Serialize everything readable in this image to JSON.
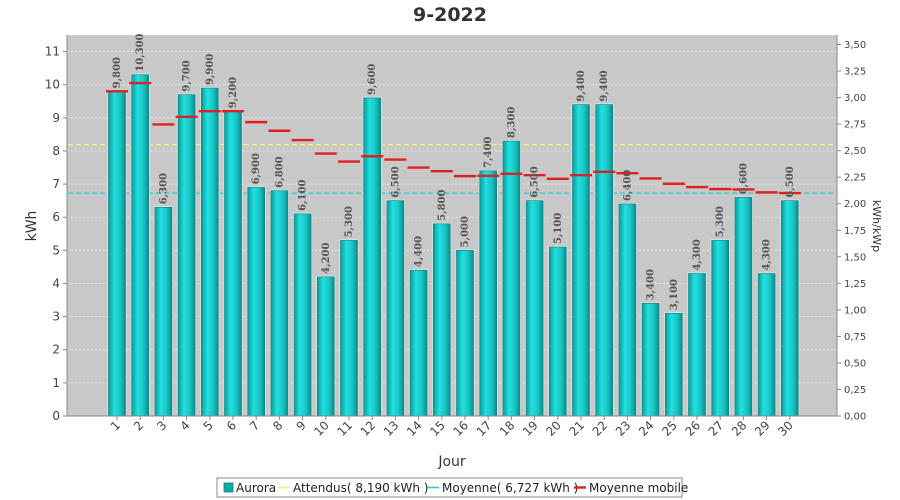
{
  "chart_data": {
    "type": "bar",
    "title": "9-2022",
    "xlabel": "Jour",
    "ylabel": "kWh",
    "ylabel_right": "kWh/kWp",
    "ylim": [
      0,
      11.5
    ],
    "ylim_right": [
      0,
      3.59
    ],
    "y_ticks": [
      0,
      1,
      2,
      3,
      4,
      5,
      6,
      7,
      8,
      9,
      10,
      11
    ],
    "y_right_ticks": [
      "0,00",
      "0,25",
      "0,50",
      "0,75",
      "1,00",
      "1,25",
      "1,50",
      "1,75",
      "2,00",
      "2,25",
      "2,50",
      "2,75",
      "3,00",
      "3,25",
      "3,50"
    ],
    "categories": [
      "1",
      "2",
      "3",
      "4",
      "5",
      "6",
      "7",
      "8",
      "9",
      "10",
      "11",
      "12",
      "13",
      "14",
      "15",
      "16",
      "17",
      "18",
      "19",
      "20",
      "21",
      "22",
      "23",
      "24",
      "25",
      "26",
      "27",
      "28",
      "29",
      "30"
    ],
    "series": [
      {
        "name": "Aurora",
        "type": "bar",
        "color": "#1ec8c8",
        "values": [
          9.8,
          10.3,
          6.3,
          9.7,
          9.9,
          9.2,
          6.9,
          6.8,
          6.1,
          4.2,
          5.3,
          9.6,
          6.5,
          4.4,
          5.8,
          5.0,
          7.4,
          8.3,
          6.5,
          5.1,
          9.4,
          9.4,
          6.4,
          3.4,
          3.1,
          4.3,
          5.3,
          6.6,
          4.3,
          6.5
        ],
        "labels": [
          "9,800",
          "10,300",
          "6,300",
          "9,700",
          "9,900",
          "9,200",
          "6,900",
          "6,800",
          "6,100",
          "4,200",
          "5,300",
          "9,600",
          "6,500",
          "4,400",
          "5,800",
          "5,000",
          "7,400",
          "8,300",
          "6,500",
          "5,100",
          "9,400",
          "9,400",
          "6,400",
          "3,400",
          "3,100",
          "4,300",
          "5,300",
          "6,600",
          "4,300",
          "6,500"
        ]
      },
      {
        "name": "Attendus( 8,190 kWh )",
        "type": "hline",
        "color": "#f0f080",
        "value": 8.19
      },
      {
        "name": "Moyenne( 6,727 kWh )",
        "type": "hline",
        "color": "#30c8c8",
        "value": 6.727
      },
      {
        "name": "Moyenne mobile",
        "type": "step",
        "color": "#e02020",
        "values": [
          9.8,
          10.05,
          8.8,
          9.03,
          9.2,
          9.2,
          8.87,
          8.61,
          8.33,
          7.92,
          7.68,
          7.84,
          7.74,
          7.5,
          7.39,
          7.24,
          7.25,
          7.31,
          7.27,
          7.16,
          7.27,
          7.37,
          7.33,
          7.17,
          7.01,
          6.91,
          6.85,
          6.84,
          6.75,
          6.73
        ]
      }
    ],
    "grid": true,
    "legend_position": "bottom"
  }
}
